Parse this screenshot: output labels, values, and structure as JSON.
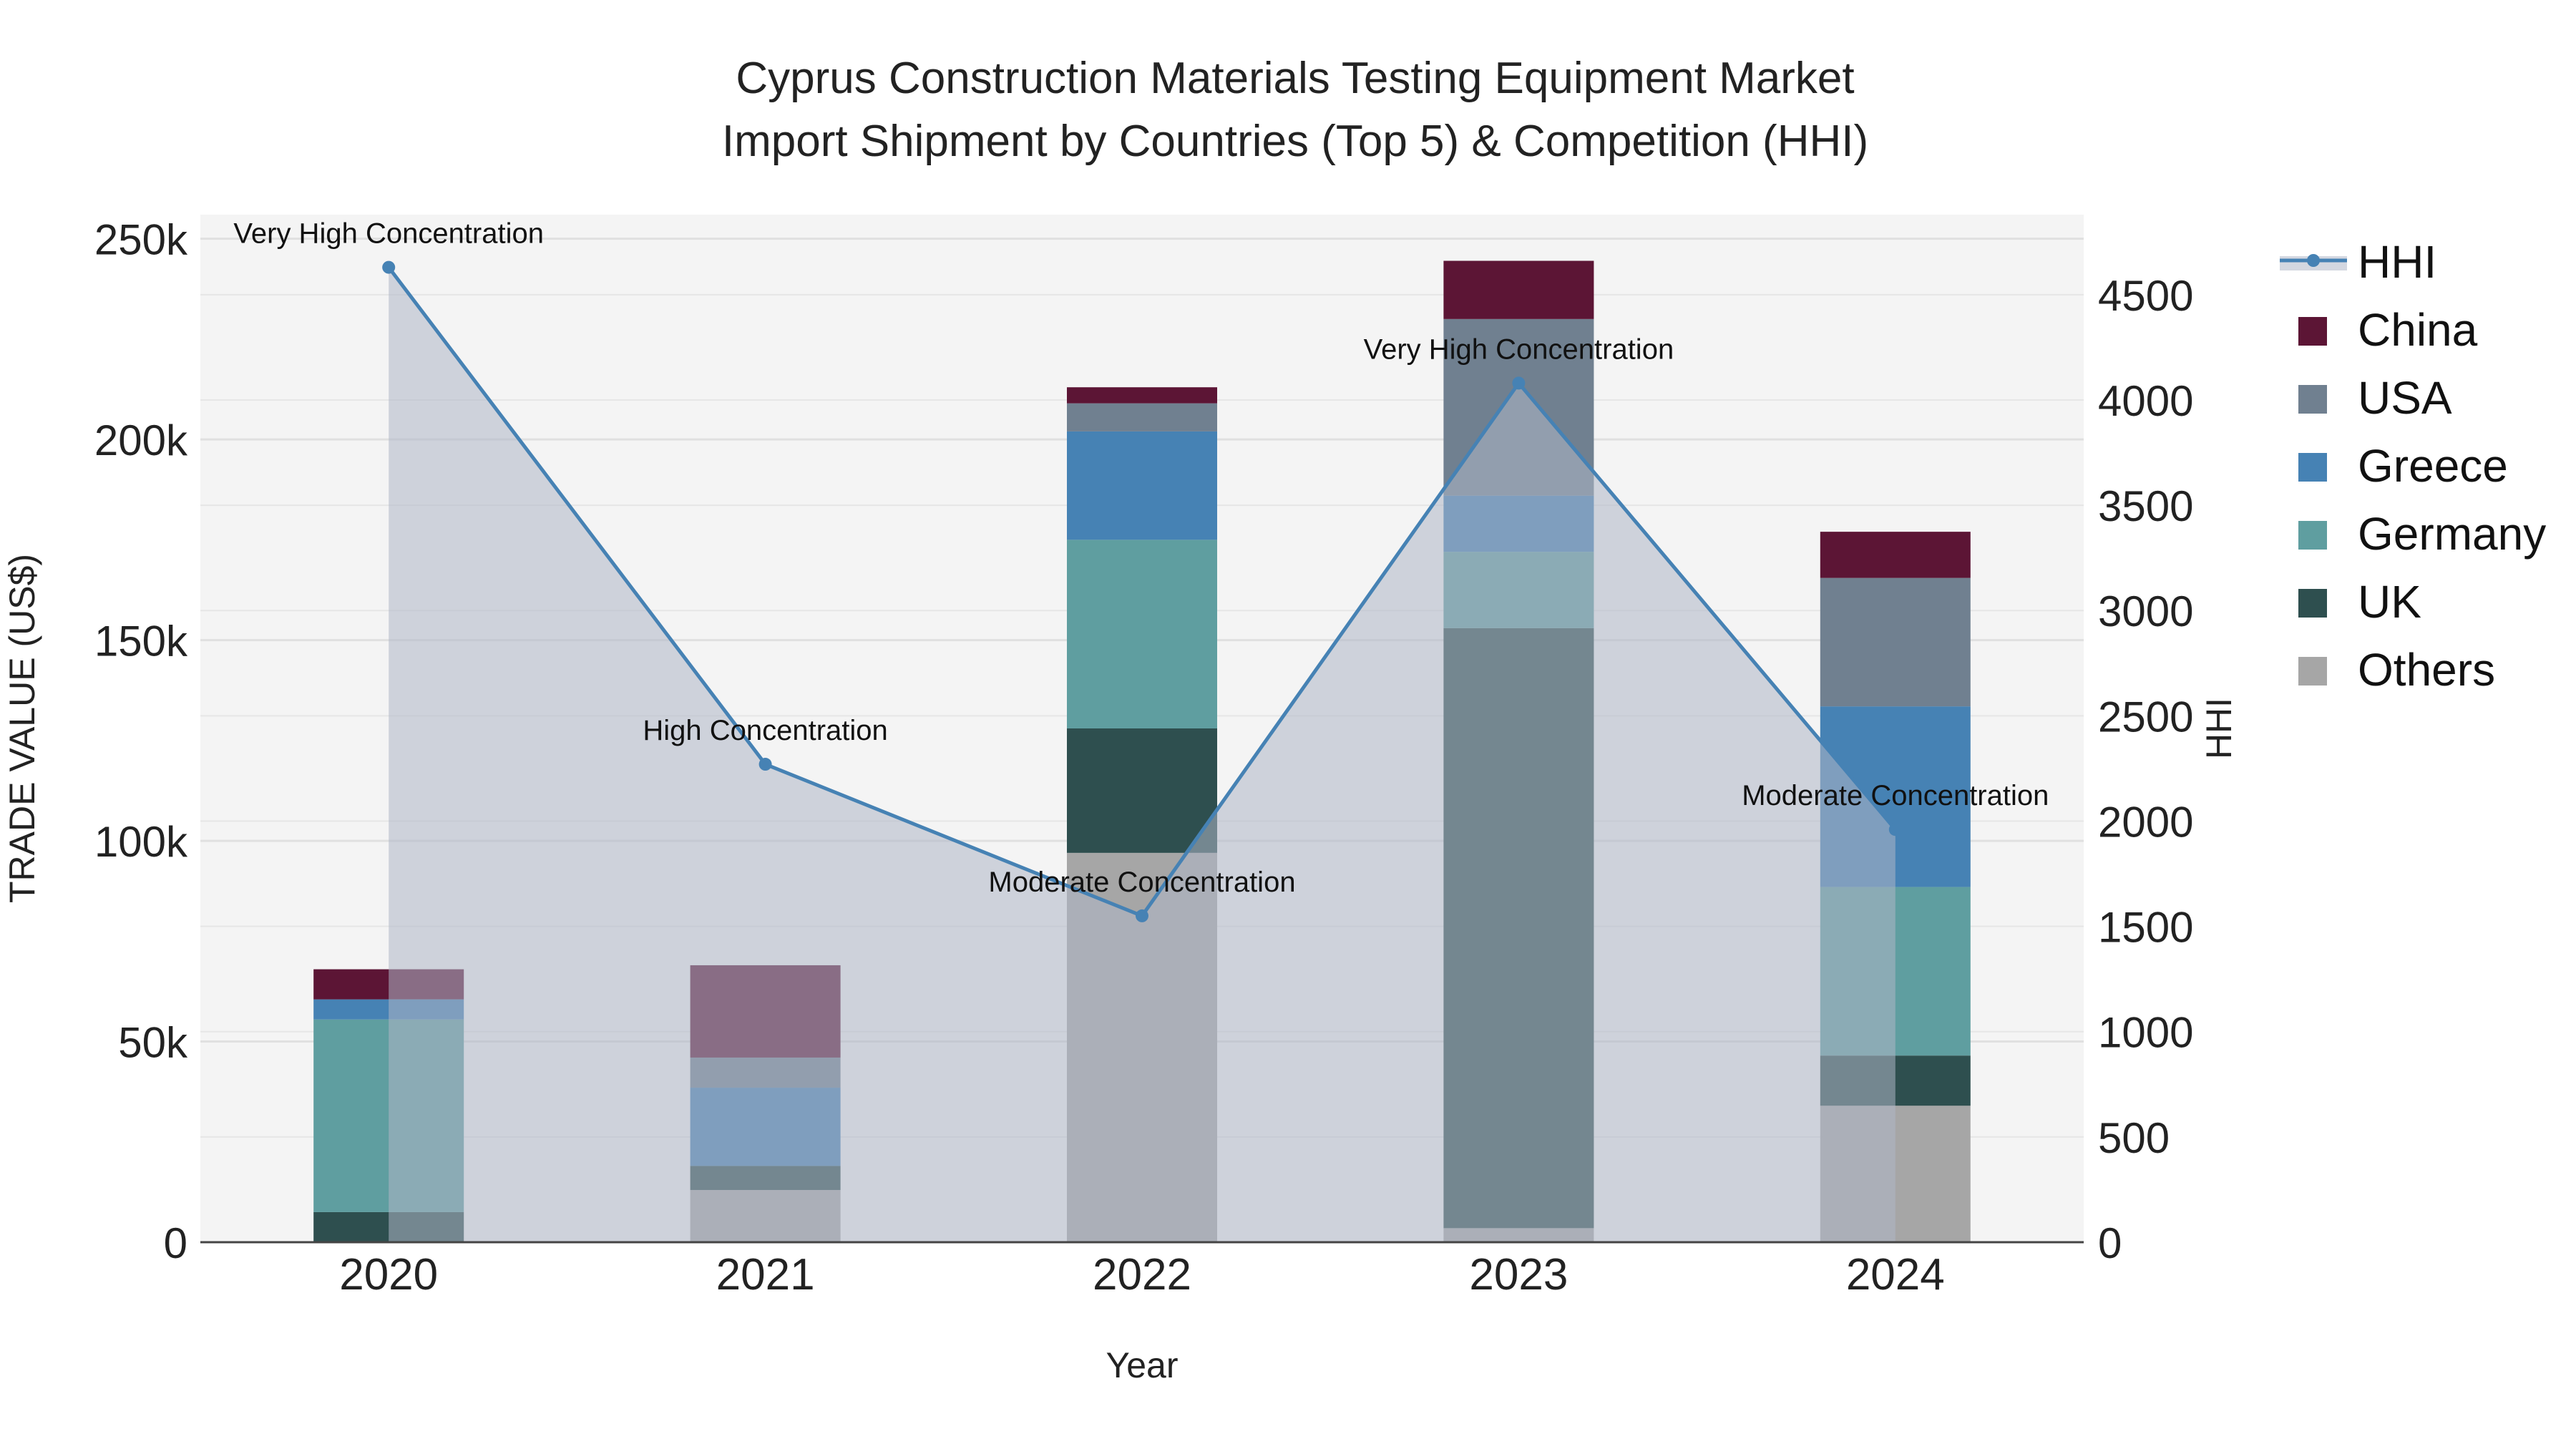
{
  "chart_data": {
    "type": "bar",
    "title_line1": "Cyprus Construction Materials Testing Equipment Market",
    "title_line2": "Import Shipment by Countries (Top 5) & Competition (HHI)",
    "xlabel": "Year",
    "ylabel": "TRADE VALUE (US$)",
    "y2label": "HHI",
    "categories": [
      "2020",
      "2021",
      "2022",
      "2023",
      "2024"
    ],
    "ylim": [
      0,
      256000
    ],
    "y2lim": [
      0,
      4880
    ],
    "yticks": [
      {
        "value": 0,
        "label": "0"
      },
      {
        "value": 50000,
        "label": "50k"
      },
      {
        "value": 100000,
        "label": "100k"
      },
      {
        "value": 150000,
        "label": "150k"
      },
      {
        "value": 200000,
        "label": "200k"
      },
      {
        "value": 250000,
        "label": "250k"
      }
    ],
    "y2ticks": [
      {
        "value": 0,
        "label": "0"
      },
      {
        "value": 500,
        "label": "500"
      },
      {
        "value": 1000,
        "label": "1000"
      },
      {
        "value": 1500,
        "label": "1500"
      },
      {
        "value": 2000,
        "label": "2000"
      },
      {
        "value": 2500,
        "label": "2500"
      },
      {
        "value": 3000,
        "label": "3000"
      },
      {
        "value": 3500,
        "label": "3500"
      },
      {
        "value": 4000,
        "label": "4000"
      },
      {
        "value": 4500,
        "label": "4500"
      }
    ],
    "series": [
      {
        "name": "Others",
        "color": "#a6a6a6",
        "values": [
          0,
          13000,
          97000,
          3500,
          34000
        ]
      },
      {
        "name": "UK",
        "color": "#2e4f4f",
        "values": [
          7500,
          6000,
          31000,
          149500,
          12500
        ]
      },
      {
        "name": "Germany",
        "color": "#5f9ea0",
        "values": [
          48000,
          0,
          47000,
          19000,
          42000
        ]
      },
      {
        "name": "Greece",
        "color": "#4682b4",
        "values": [
          5000,
          19500,
          27000,
          14000,
          45000
        ]
      },
      {
        "name": "USA",
        "color": "#708090",
        "values": [
          0,
          7500,
          7000,
          44000,
          32000
        ]
      },
      {
        "name": "China",
        "color": "#5c1535",
        "values": [
          7500,
          23000,
          4000,
          14500,
          11500
        ]
      }
    ],
    "hhi": {
      "name": "HHI",
      "color": "#4682b4",
      "values": [
        4630,
        2270,
        1550,
        4080,
        1960
      ],
      "annotations": [
        "Very High Concentration",
        "High Concentration",
        "Moderate Concentration",
        "Very High Concentration",
        "Moderate Concentration"
      ]
    },
    "legend_order": [
      "HHI",
      "China",
      "USA",
      "Greece",
      "Germany",
      "UK",
      "Others"
    ]
  }
}
